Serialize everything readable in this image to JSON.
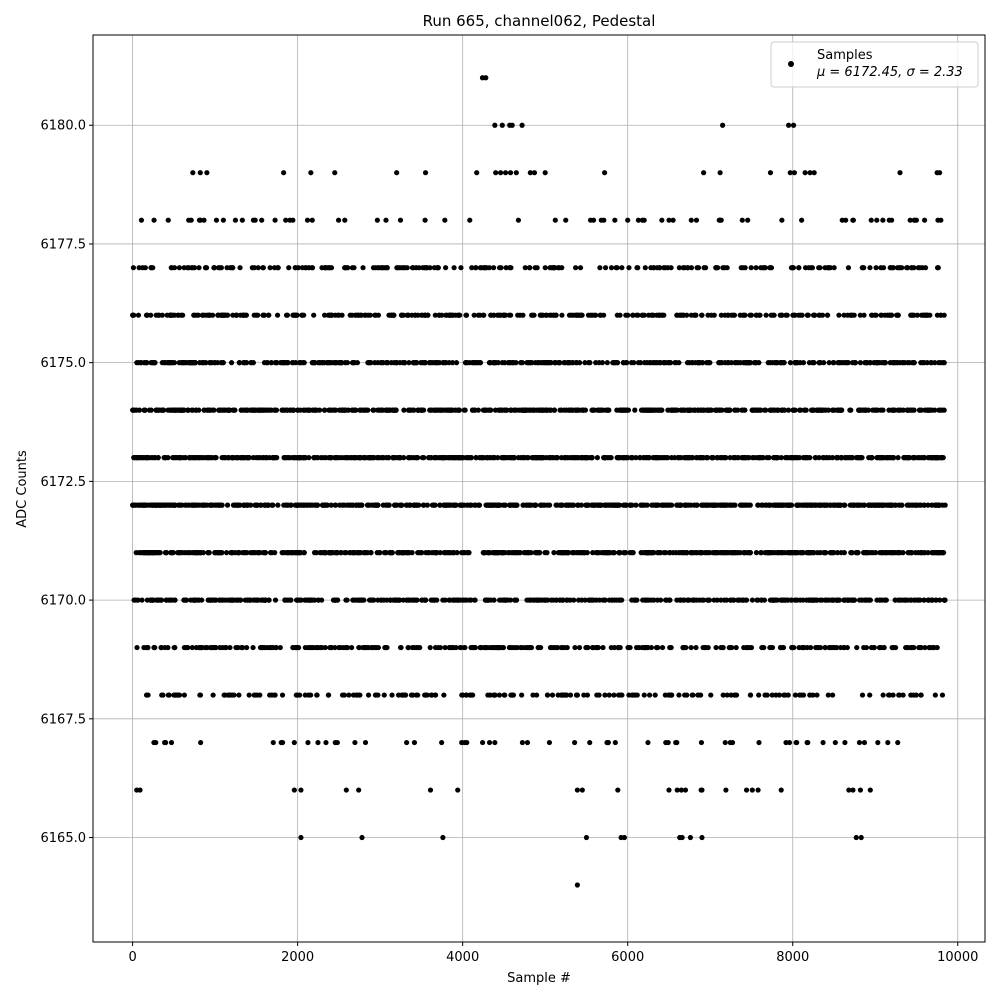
{
  "chart_data": {
    "type": "scatter",
    "title": "Run 665, channel062, Pedestal",
    "xlabel": "Sample #",
    "ylabel": "ADC Counts",
    "xlim": [
      -480,
      10330
    ],
    "ylim": [
      6162.8,
      6181.9
    ],
    "xticks": [
      0,
      2000,
      4000,
      6000,
      8000,
      10000
    ],
    "xtick_labels": [
      "0",
      "2000",
      "4000",
      "6000",
      "8000",
      "10000"
    ],
    "yticks": [
      6165.0,
      6167.5,
      6170.0,
      6172.5,
      6175.0,
      6177.5,
      6180.0
    ],
    "ytick_labels": [
      "6165.0",
      "6167.5",
      "6170.0",
      "6172.5",
      "6175.0",
      "6177.5",
      "6180.0"
    ],
    "grid": true,
    "marker_color": "#000000",
    "legend": {
      "placement": "top-right",
      "entries": [
        {
          "label": "Samples",
          "stats": "μ = 6172.45, σ = 2.33"
        }
      ]
    },
    "series": [
      {
        "name": "Samples",
        "points": [
          [
            4240,
            6181
          ],
          [
            4280,
            6181
          ],
          [
            4390,
            6180
          ],
          [
            4480,
            6180
          ],
          [
            4570,
            6180
          ],
          [
            4600,
            6180
          ],
          [
            4720,
            6180
          ],
          [
            7150,
            6180
          ],
          [
            7950,
            6180
          ],
          [
            8010,
            6180
          ],
          [
            730,
            6179
          ],
          [
            820,
            6179
          ],
          [
            900,
            6179
          ],
          [
            1830,
            6179
          ],
          [
            2160,
            6179
          ],
          [
            2450,
            6179
          ],
          [
            3200,
            6179
          ],
          [
            3550,
            6179
          ],
          [
            4170,
            6179
          ],
          [
            4400,
            6179
          ],
          [
            4460,
            6179
          ],
          [
            4520,
            6179
          ],
          [
            4580,
            6179
          ],
          [
            4650,
            6179
          ],
          [
            4820,
            6179
          ],
          [
            4870,
            6179
          ],
          [
            5000,
            6179
          ],
          [
            5720,
            6179
          ],
          [
            6920,
            6179
          ],
          [
            7120,
            6179
          ],
          [
            7730,
            6179
          ],
          [
            7970,
            6179
          ],
          [
            8020,
            6179
          ],
          [
            8150,
            6179
          ],
          [
            8210,
            6179
          ],
          [
            8260,
            6179
          ],
          [
            9300,
            6179
          ],
          [
            9750,
            6179
          ],
          [
            9780,
            6179
          ],
          [
            6550,
            6178
          ],
          [
            7120,
            6178
          ],
          [
            8600,
            6178
          ],
          [
            9170,
            6178
          ],
          [
            9760,
            6178
          ],
          [
            5550,
            6178
          ],
          [
            5680,
            6178
          ],
          [
            6000,
            6178
          ],
          [
            6200,
            6178
          ],
          [
            260,
            6178
          ],
          [
            680,
            6178
          ],
          [
            810,
            6178
          ],
          [
            1100,
            6178
          ],
          [
            1330,
            6178
          ],
          [
            7580,
            6166
          ],
          [
            7860,
            6166
          ],
          [
            8680,
            6166
          ],
          [
            8730,
            6166
          ],
          [
            8820,
            6166
          ],
          [
            8940,
            6166
          ],
          [
            1960,
            6166
          ],
          [
            2040,
            6166
          ],
          [
            2590,
            6166
          ],
          [
            2740,
            6166
          ],
          [
            3610,
            6166
          ],
          [
            3940,
            6166
          ],
          [
            5880,
            6166
          ],
          [
            6650,
            6166
          ],
          [
            6700,
            6166
          ],
          [
            6890,
            6166
          ],
          [
            7190,
            6166
          ],
          [
            7440,
            6166
          ],
          [
            7510,
            6166
          ],
          [
            5390,
            6166
          ],
          [
            5450,
            6166
          ],
          [
            6500,
            6166
          ],
          [
            6600,
            6166
          ],
          [
            6900,
            6166
          ],
          [
            50,
            6166
          ],
          [
            90,
            6166
          ],
          [
            2040,
            6165
          ],
          [
            2780,
            6165
          ],
          [
            3760,
            6165
          ],
          [
            5500,
            6165
          ],
          [
            5920,
            6165
          ],
          [
            5960,
            6165
          ],
          [
            6630,
            6165
          ],
          [
            6660,
            6165
          ],
          [
            6760,
            6165
          ],
          [
            6900,
            6165
          ],
          [
            8770,
            6165
          ],
          [
            8830,
            6165
          ],
          [
            5390,
            6164
          ]
        ],
        "dense_levels": [
          {
            "y": 6177,
            "count": 230
          },
          {
            "y": 6176,
            "count": 340
          },
          {
            "y": 6175,
            "count": 430
          },
          {
            "y": 6174,
            "count": 560
          },
          {
            "y": 6173,
            "count": 620
          },
          {
            "y": 6172,
            "count": 620
          },
          {
            "y": 6171,
            "count": 560
          },
          {
            "y": 6170,
            "count": 470
          },
          {
            "y": 6169,
            "count": 330
          },
          {
            "y": 6168,
            "count": 200
          },
          {
            "y": 6167,
            "count": 60
          }
        ],
        "sparse_levels": [
          {
            "y": 6178,
            "count": 55
          }
        ],
        "x_range": [
          0,
          9850
        ]
      }
    ]
  }
}
